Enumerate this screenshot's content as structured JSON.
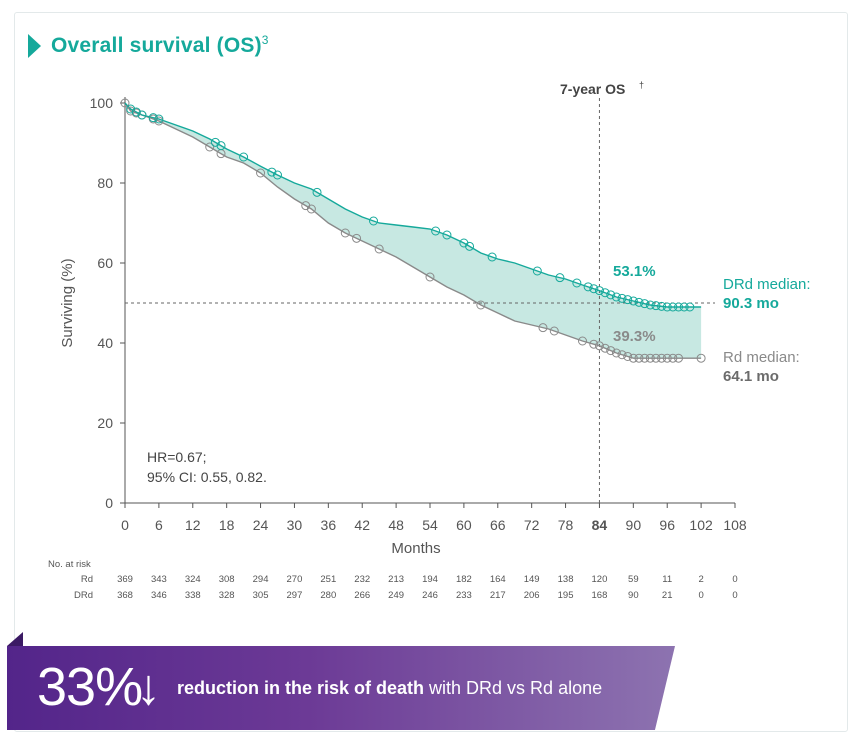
{
  "header": {
    "title": "Overall survival (OS)",
    "title_sup": "3"
  },
  "banner": {
    "big": "33%",
    "arrow": "↓",
    "bold_text": "reduction in the risk of death",
    "rest_text": " with DRd vs Rd alone"
  },
  "colors": {
    "teal": "#15a99b",
    "gray": "#8a8a8a",
    "fill": "#c7e8e2",
    "purple_dark": "#53258a",
    "purple_light": "#8d73b0"
  },
  "chart_data": {
    "type": "line",
    "ylabel": "Surviving (%)",
    "xlabel": "Months",
    "xlim": [
      0,
      108
    ],
    "ylim": [
      0,
      100
    ],
    "xticks": [
      "0",
      "6",
      "12",
      "18",
      "24",
      "30",
      "36",
      "42",
      "48",
      "54",
      "60",
      "66",
      "72",
      "78",
      "84",
      "90",
      "96",
      "102",
      "108"
    ],
    "yticks": [
      "0",
      "20",
      "40",
      "60",
      "80",
      "100"
    ],
    "series": [
      {
        "name": "DRd",
        "color": "#15a99b",
        "x": [
          0,
          1,
          3,
          6,
          9,
          12,
          15,
          18,
          21,
          24,
          27,
          30,
          33,
          36,
          39,
          42,
          45,
          48,
          51,
          54,
          57,
          60,
          63,
          66,
          69,
          72,
          75,
          78,
          81,
          84,
          87,
          90,
          93,
          96,
          99,
          102
        ],
        "y": [
          100,
          98.5,
          97,
          96,
          94.5,
          93,
          91,
          88.5,
          86.5,
          84.2,
          82,
          80,
          78.5,
          76,
          73.5,
          71.5,
          70,
          69.5,
          69,
          68.5,
          67,
          65,
          62.5,
          61,
          60,
          58.5,
          57,
          56,
          54.5,
          53.1,
          51.5,
          50.5,
          49.5,
          49,
          49,
          49
        ]
      },
      {
        "name": "Rd",
        "color": "#8a8a8a",
        "x": [
          0,
          1,
          3,
          6,
          9,
          12,
          15,
          18,
          21,
          24,
          27,
          30,
          33,
          36,
          39,
          42,
          45,
          48,
          51,
          54,
          57,
          60,
          63,
          66,
          69,
          72,
          75,
          78,
          81,
          84,
          87,
          90,
          93,
          96,
          99,
          102
        ],
        "y": [
          100,
          98,
          97,
          95.5,
          93.5,
          91.5,
          89,
          86.5,
          85,
          82.5,
          79,
          76,
          73.5,
          70,
          67.5,
          65.5,
          63.5,
          61.5,
          59,
          56.5,
          54,
          52,
          49.5,
          47.5,
          45.5,
          44.5,
          43.5,
          42,
          40.5,
          39.3,
          37.5,
          36.2,
          36.2,
          36.2,
          36.2,
          36.2
        ]
      }
    ],
    "censor_drd": [
      1,
      2,
      3,
      5,
      6,
      16,
      17,
      21,
      26,
      27,
      34,
      44,
      55,
      57,
      60,
      61,
      65,
      73,
      77,
      80,
      82,
      83,
      84,
      85,
      86,
      87,
      88,
      89,
      90,
      91,
      92,
      93,
      94,
      95,
      96,
      97,
      98,
      99,
      100
    ],
    "censor_rd": [
      0,
      1,
      2,
      3,
      5,
      6,
      15,
      17,
      24,
      32,
      33,
      39,
      41,
      45,
      54,
      63,
      74,
      76,
      81,
      83,
      84,
      85,
      86,
      87,
      88,
      89,
      90,
      91,
      92,
      93,
      94,
      95,
      96,
      97,
      98,
      102
    ],
    "reference_line_y": 50,
    "reference_line_x": 84,
    "annotations": {
      "os7_label": "7-year OS",
      "os7_sup": "†",
      "drd_value": "53.1%",
      "rd_value": "39.3%",
      "drd_median_label": "DRd median:",
      "drd_median_value": "90.3 mo",
      "rd_median_label": "Rd median:",
      "rd_median_value": "64.1 mo",
      "hr_line1": "HR=0.67;",
      "hr_line2": "95% CI: 0.55, 0.82."
    },
    "at_risk": {
      "title": "No. at risk",
      "rows": [
        {
          "label": "Rd",
          "values": [
            "369",
            "343",
            "324",
            "308",
            "294",
            "270",
            "251",
            "232",
            "213",
            "194",
            "182",
            "164",
            "149",
            "138",
            "120",
            "59",
            "11",
            "2",
            "0"
          ]
        },
        {
          "label": "DRd",
          "values": [
            "368",
            "346",
            "338",
            "328",
            "305",
            "297",
            "280",
            "266",
            "249",
            "246",
            "233",
            "217",
            "206",
            "195",
            "168",
            "90",
            "21",
            "0",
            "0"
          ]
        }
      ]
    }
  }
}
